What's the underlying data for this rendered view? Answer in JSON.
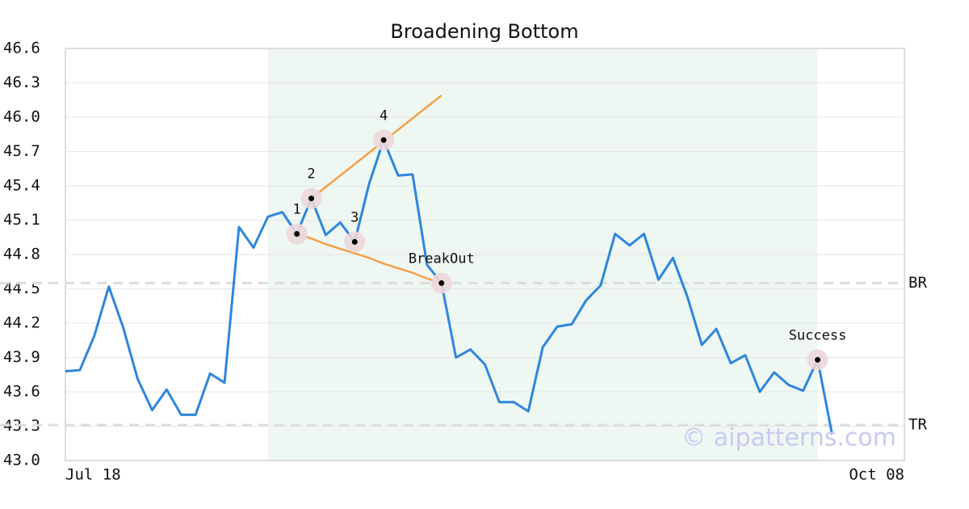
{
  "chart_data": {
    "type": "line",
    "title": "Broadening Bottom",
    "x_labels": [
      "Jul 18",
      "Oct 08"
    ],
    "xlim": [
      0,
      58
    ],
    "ylim": [
      43.0,
      46.6
    ],
    "yticks": [
      {
        "value": 43.0,
        "label": "43.0"
      },
      43.3,
      43.6,
      43.9,
      44.2,
      44.5,
      44.8,
      45.1,
      45.4,
      45.7,
      {
        "value": 46.0,
        "label": "46.0"
      },
      46.3,
      46.6
    ],
    "grid": true,
    "color": "#2e86de",
    "values": [
      43.78,
      43.79,
      44.09,
      44.52,
      44.16,
      43.71,
      43.44,
      43.62,
      43.4,
      43.4,
      43.76,
      43.68,
      45.04,
      44.86,
      45.13,
      45.17,
      44.98,
      45.29,
      44.97,
      45.08,
      44.91,
      45.42,
      45.8,
      45.49,
      45.5,
      44.71,
      44.55,
      43.9,
      43.97,
      43.84,
      43.51,
      43.51,
      43.43,
      43.99,
      44.17,
      44.19,
      44.4,
      44.53,
      44.98,
      44.88,
      44.98,
      44.58,
      44.77,
      44.43,
      44.01,
      44.15,
      43.85,
      43.92,
      43.6,
      43.77,
      43.66,
      43.61,
      43.88,
      43.23
    ],
    "highlight_range": [
      14,
      52
    ],
    "highlight_color": "#eef7f2",
    "markers": {
      "values": [
        null,
        null,
        null,
        null,
        null,
        null,
        null,
        null,
        null,
        null,
        null,
        null,
        null,
        null,
        null,
        null,
        44.98,
        45.29,
        null,
        null,
        44.91,
        null,
        45.8,
        null,
        null,
        null,
        44.55,
        null,
        null,
        null,
        null,
        null,
        null,
        null,
        null,
        null,
        null,
        null,
        null,
        null,
        null,
        null,
        null,
        null,
        null,
        null,
        null,
        null,
        null,
        null,
        null,
        null,
        43.88,
        null
      ],
      "value_labels": [
        null,
        null,
        null,
        null,
        null,
        null,
        null,
        null,
        null,
        null,
        null,
        null,
        null,
        null,
        null,
        null,
        "1",
        "2",
        null,
        null,
        "3",
        null,
        "4",
        null,
        null,
        null,
        "BreakOut",
        null,
        null,
        null,
        null,
        null,
        null,
        null,
        null,
        null,
        null,
        null,
        null,
        null,
        null,
        null,
        null,
        null,
        null,
        null,
        null,
        null,
        null,
        null,
        null,
        null,
        "Success",
        null
      ]
    },
    "trendlines": [
      {
        "color": "#f5a04a",
        "values": [
          null,
          null,
          null,
          null,
          null,
          null,
          null,
          null,
          null,
          null,
          null,
          null,
          null,
          null,
          null,
          null,
          null,
          45.29,
          45.39,
          45.49,
          45.59,
          45.69,
          45.79,
          45.89,
          45.99,
          46.09,
          46.19,
          null,
          null,
          null,
          null,
          null,
          null,
          null,
          null,
          null,
          null,
          null,
          null,
          null,
          null,
          null,
          null,
          null,
          null,
          null,
          null,
          null,
          null,
          null,
          null,
          null,
          null,
          null
        ]
      },
      {
        "color": "#f5a04a",
        "values": [
          null,
          null,
          null,
          null,
          null,
          null,
          null,
          null,
          null,
          null,
          null,
          null,
          null,
          null,
          null,
          null,
          44.98,
          44.94,
          44.89,
          44.85,
          44.81,
          44.77,
          44.72,
          44.68,
          44.64,
          44.59,
          44.55,
          null,
          null,
          null,
          null,
          null,
          null,
          null,
          null,
          null,
          null,
          null,
          null,
          null,
          null,
          null,
          null,
          null,
          null,
          null,
          null,
          null,
          null,
          null,
          null,
          null,
          null,
          null
        ]
      }
    ],
    "levels": [
      {
        "label": "BR",
        "value": 44.55
      },
      {
        "label": "TR",
        "value": 43.31
      }
    ],
    "watermark": "© aipatterns.com"
  }
}
